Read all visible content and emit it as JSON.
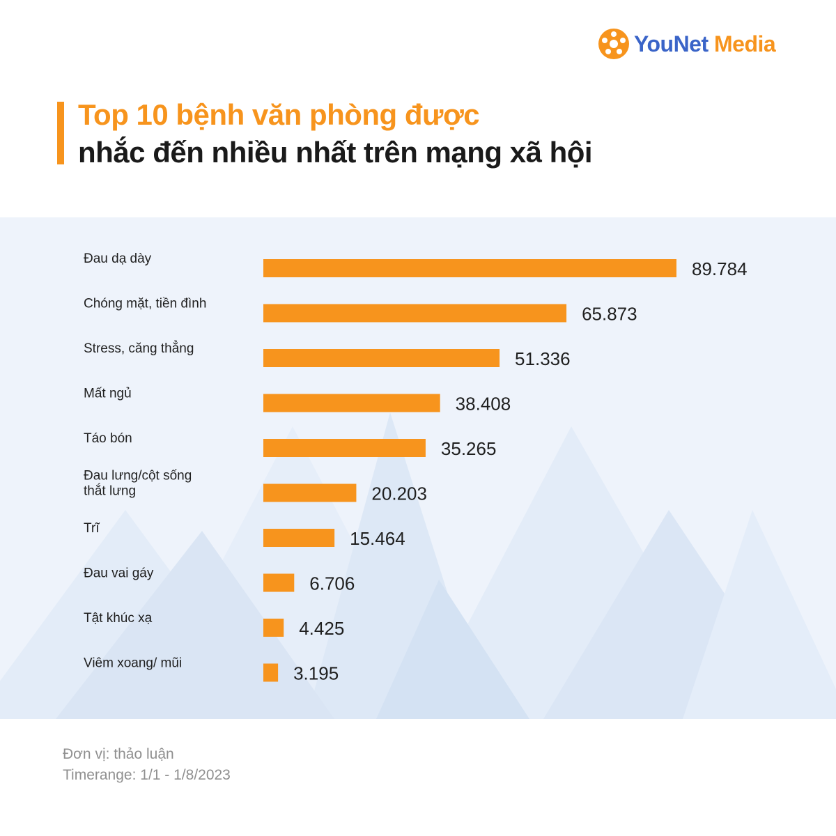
{
  "brand": {
    "name_part1": "YouNet",
    "name_part2": "Media"
  },
  "header": {
    "title_line1": "Top 10 bệnh văn phòng được",
    "title_line2": "nhắc đến nhiều nhất trên mạng xã hội"
  },
  "footer": {
    "unit": "Đơn vị: thảo luận",
    "timerange": "Timerange: 1/1 - 1/8/2023"
  },
  "colors": {
    "bar": "#f7941d",
    "title_accent": "#f7941d",
    "panel_background": "#eef3fb"
  },
  "chart_data": {
    "type": "bar",
    "orientation": "horizontal",
    "categories": [
      [
        "Đau dạ dày"
      ],
      [
        "Chóng mặt, tiền đình"
      ],
      [
        "Stress, căng thẳng"
      ],
      [
        "Mất ngủ"
      ],
      [
        "Táo bón"
      ],
      [
        "Đau lưng/cột sống",
        "thắt lưng"
      ],
      [
        "Trĩ"
      ],
      [
        "Đau vai gáy"
      ],
      [
        "Tật khúc xạ"
      ],
      [
        "Viêm xoang/ mũi"
      ]
    ],
    "values": [
      89784,
      65873,
      51336,
      38408,
      35265,
      20203,
      15464,
      6706,
      4425,
      3195
    ],
    "value_labels": [
      "89.784",
      "65.873",
      "51.336",
      "38.408",
      "35.265",
      "20.203",
      "15.464",
      "6.706",
      "4.425",
      "3.195"
    ],
    "xlim": [
      0,
      89784
    ],
    "grid": false,
    "legend": "none"
  }
}
